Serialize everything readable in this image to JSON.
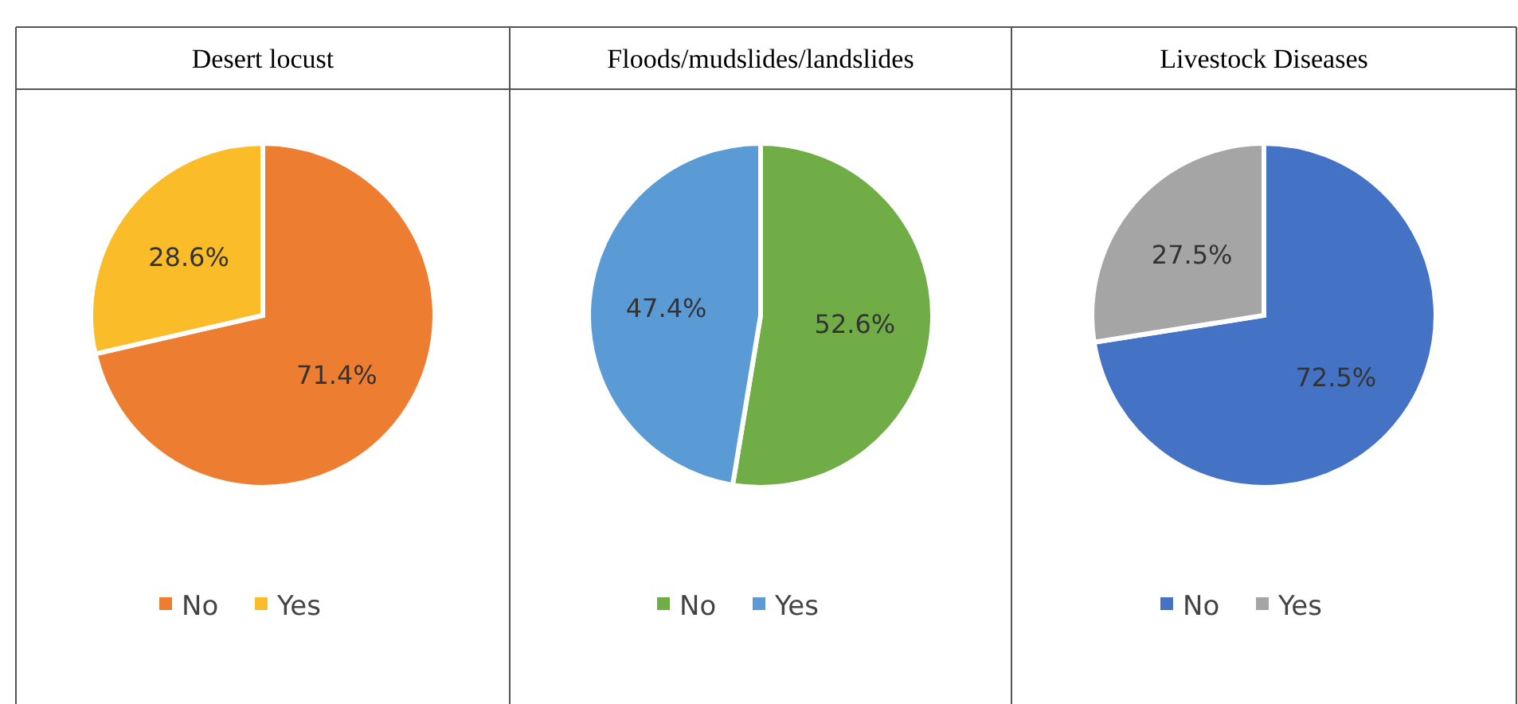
{
  "chart_data": [
    {
      "type": "pie",
      "title": "Desert locust",
      "categories": [
        "No",
        "Yes"
      ],
      "values": [
        71.4,
        28.6
      ],
      "colors": [
        "#ed7d31",
        "#fbbc2a"
      ],
      "value_labels": [
        "71.4%",
        "28.6%"
      ],
      "legend": "bottom"
    },
    {
      "type": "pie",
      "title": "Floods/mudslides/landslides",
      "categories": [
        "No",
        "Yes"
      ],
      "values": [
        52.6,
        47.4
      ],
      "colors": [
        "#70ad47",
        "#5b9bd5"
      ],
      "value_labels": [
        "52.6%",
        "47.4%"
      ],
      "legend": "bottom"
    },
    {
      "type": "pie",
      "title": "Livestock Diseases",
      "categories": [
        "No",
        "Yes"
      ],
      "values": [
        72.5,
        27.5
      ],
      "colors": [
        "#4472c4",
        "#a5a5a5"
      ],
      "value_labels": [
        "72.5%",
        "27.5%"
      ],
      "legend": "bottom"
    }
  ]
}
